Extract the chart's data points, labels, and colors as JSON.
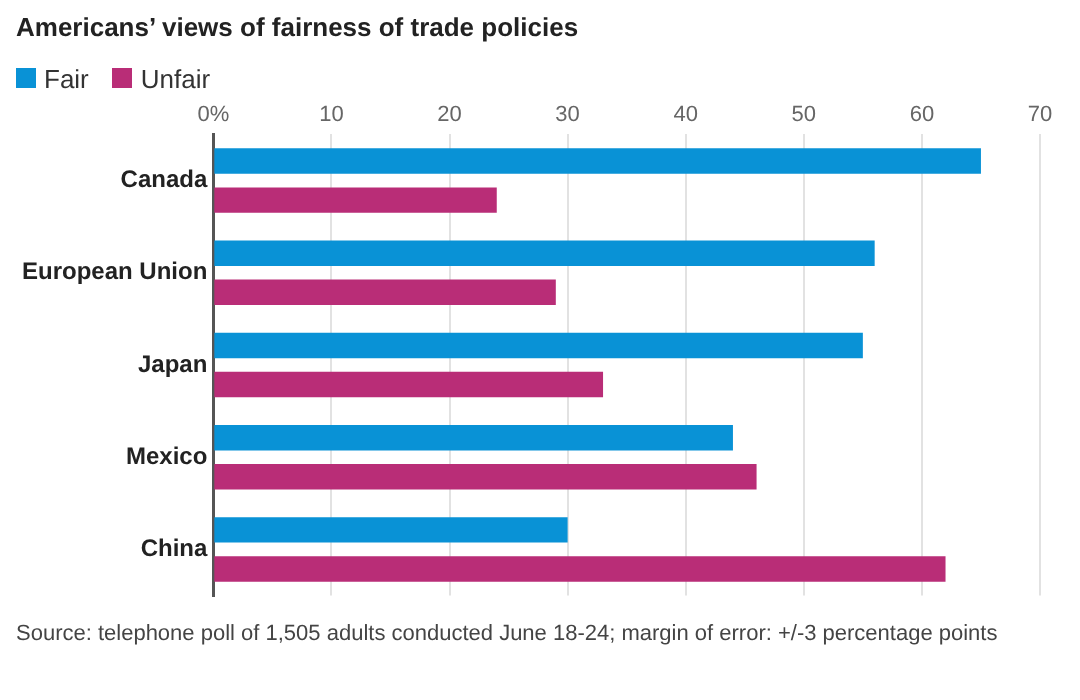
{
  "chart_data": {
    "type": "bar",
    "orientation": "horizontal",
    "title": "Americans’ views of fairness of trade policies",
    "categories": [
      "Canada",
      "European Union",
      "Japan",
      "Mexico",
      "China"
    ],
    "series": [
      {
        "name": "Fair",
        "color": "#0992d6",
        "values": [
          65,
          56,
          55,
          44,
          30
        ]
      },
      {
        "name": "Unfair",
        "color": "#b92d77",
        "values": [
          24,
          29,
          33,
          46,
          62
        ]
      }
    ],
    "xlim": [
      0,
      70
    ],
    "xticks": [
      {
        "value": 0,
        "label": "0%"
      },
      10,
      20,
      30,
      40,
      50,
      60,
      70
    ],
    "grid": "x",
    "legend": "top left",
    "annotations": [
      "Source: telephone poll of 1,505 adults conducted June 18-24; margin of error: +/-3 percentage points"
    ]
  }
}
